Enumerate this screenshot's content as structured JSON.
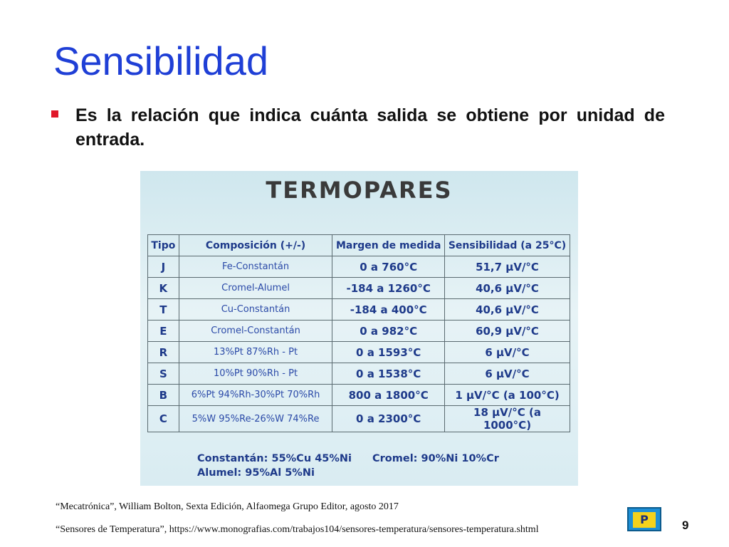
{
  "slide": {
    "title": "Sensibilidad",
    "bullet": "Es la relación que indica cuánta salida se obtiene por unidad de entrada.",
    "page_number": "9"
  },
  "figure": {
    "title": "TERMOPARES",
    "headers": [
      "Tipo",
      "Composición (+/-)",
      "Margen de medida",
      "Sensibilidad (a 25°C)"
    ],
    "rows": [
      [
        "J",
        "Fe-Constantán",
        "0 a 760°C",
        "51,7 μV/°C"
      ],
      [
        "K",
        "Cromel-Alumel",
        "-184 a 1260°C",
        "40,6 μV/°C"
      ],
      [
        "T",
        "Cu-Constantán",
        "-184 a 400°C",
        "40,6 μV/°C"
      ],
      [
        "E",
        "Cromel-Constantán",
        "0 a 982°C",
        "60,9 μV/°C"
      ],
      [
        "R",
        "13%Pt 87%Rh - Pt",
        "0 a 1593°C",
        "6 μV/°C"
      ],
      [
        "S",
        "10%Pt 90%Rh - Pt",
        "0 a 1538°C",
        "6 μV/°C"
      ],
      [
        "B",
        "6%Pt 94%Rh-30%Pt 70%Rh",
        "800 a 1800°C",
        "1 μV/°C  (a 100°C)"
      ],
      [
        "C",
        "5%W 95%Re-26%W 74%Re",
        "0 a 2300°C",
        "18 μV/°C  (a 1000°C)"
      ]
    ],
    "notes": {
      "constantan": "Constantán: 55%Cu 45%Ni",
      "cromel": "Cromel: 90%Ni 10%Cr",
      "alumel": "Alumel: 95%Al 5%Ni"
    }
  },
  "references": {
    "ref1": "“Mecatrónica”, William Bolton, Sexta Edición, Alfaomega Grupo Editor, agosto 2017",
    "ref2": "“Sensores de Temperatura”, https://www.monografias.com/trabajos104/sensores-temperatura/sensores-temperatura.shtml"
  },
  "colors": {
    "title": "#1f3fd6",
    "bullet_marker": "#e0182a",
    "table_text": "#1e3a8a"
  },
  "icons": {
    "logo": "institution-logo-icon"
  }
}
